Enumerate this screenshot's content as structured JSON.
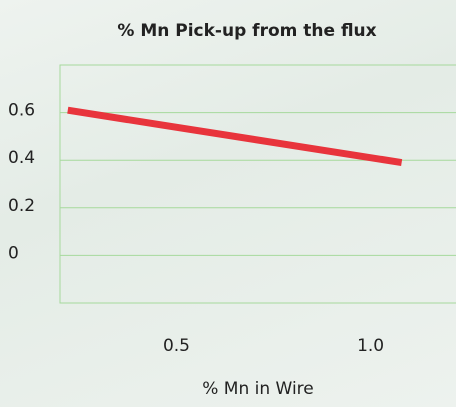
{
  "chart_data": {
    "type": "line",
    "title": "% Mn Pick-up from the flux",
    "x_label": "% Mn in Wire",
    "series": [
      {
        "color": "#e8343c",
        "x": [
          0.22,
          1.08
        ],
        "values": [
          0.61,
          0.39
        ]
      }
    ],
    "xlim": [
      0.2,
      1.22
    ],
    "xticks": [
      0.5,
      {
        "value": 1,
        "label": "1.0"
      }
    ],
    "ylim": [
      -0.2,
      0.8
    ],
    "yticks": [
      0,
      0.2,
      0.4,
      0.6
    ],
    "grid": true,
    "grid_color": "#a6d99c"
  }
}
